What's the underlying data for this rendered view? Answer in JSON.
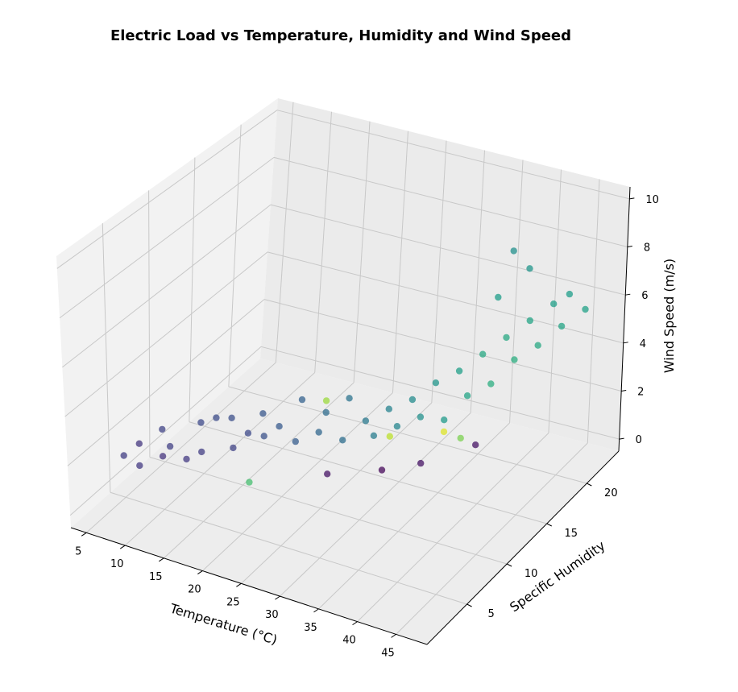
{
  "chart_data": {
    "type": "scatter",
    "projection": "3d",
    "title": "Electric Load vs Temperature, Humidity and Wind Speed",
    "xlabel": "Temperature (°C)",
    "ylabel": "Specific Humidity",
    "zlabel": "Wind Speed (m/s)",
    "xlim": [
      3,
      49
    ],
    "ylim": [
      0,
      24
    ],
    "zlim": [
      -0.5,
      10.5
    ],
    "xticks": [
      "5",
      "10",
      "15",
      "20",
      "25",
      "30",
      "35",
      "40",
      "45"
    ],
    "yticks": [
      "5",
      "10",
      "15",
      "20"
    ],
    "zticks": [
      "0",
      "2",
      "4",
      "6",
      "8",
      "10"
    ],
    "colormap": "viridis",
    "grid": true,
    "series": [
      {
        "points": [
          [
            5,
            5,
            1.2,
            0.18
          ],
          [
            6,
            6,
            1.5,
            0.16
          ],
          [
            7,
            5,
            1.0,
            0.17
          ],
          [
            8,
            7,
            2.0,
            0.2
          ],
          [
            9,
            6,
            1.3,
            0.15
          ],
          [
            10,
            6,
            1.8,
            0.19
          ],
          [
            11,
            7,
            1.1,
            0.17
          ],
          [
            12,
            8,
            2.4,
            0.22
          ],
          [
            13,
            7,
            1.6,
            0.18
          ],
          [
            14,
            8,
            2.8,
            0.23
          ],
          [
            15,
            9,
            1.4,
            0.2
          ],
          [
            16,
            8,
            3.0,
            0.24
          ],
          [
            17,
            9,
            2.2,
            0.22
          ],
          [
            18,
            10,
            1.9,
            0.25
          ],
          [
            19,
            9,
            3.2,
            0.27
          ],
          [
            20,
            10,
            2.5,
            0.28
          ],
          [
            21,
            11,
            1.7,
            0.29
          ],
          [
            22,
            11,
            3.5,
            0.31
          ],
          [
            23,
            12,
            2.0,
            0.33
          ],
          [
            24,
            12,
            2.9,
            0.35
          ],
          [
            25,
            13,
            1.6,
            0.36
          ],
          [
            26,
            13,
            3.4,
            0.38
          ],
          [
            27,
            14,
            2.3,
            0.4
          ],
          [
            28,
            14,
            1.8,
            0.42
          ],
          [
            29,
            15,
            2.7,
            0.44
          ],
          [
            30,
            15,
            2.1,
            0.46
          ],
          [
            31,
            16,
            3.0,
            0.48
          ],
          [
            32,
            16,
            2.4,
            0.5
          ],
          [
            33,
            17,
            3.6,
            0.52
          ],
          [
            34,
            17,
            2.2,
            0.54
          ],
          [
            35,
            18,
            4.0,
            0.56
          ],
          [
            36,
            18,
            3.1,
            0.58
          ],
          [
            37,
            19,
            4.6,
            0.6
          ],
          [
            38,
            19,
            3.5,
            0.62
          ],
          [
            39,
            20,
            5.2,
            0.6
          ],
          [
            40,
            20,
            4.4,
            0.62
          ],
          [
            41,
            21,
            5.8,
            0.58
          ],
          [
            42,
            21,
            4.9,
            0.6
          ],
          [
            43,
            22,
            6.4,
            0.56
          ],
          [
            44,
            22,
            5.6,
            0.58
          ],
          [
            45,
            22,
            7.0,
            0.55
          ],
          [
            46,
            23,
            6.2,
            0.57
          ],
          [
            40,
            18,
            7.5,
            0.55
          ],
          [
            42,
            20,
            8.3,
            0.52
          ],
          [
            41,
            19,
            9.2,
            0.5
          ],
          [
            34,
            14,
            1.3,
            0.05
          ],
          [
            30,
            13,
            0.9,
            0.02
          ],
          [
            36,
            15,
            2.5,
            0.95
          ],
          [
            25,
            11,
            0.8,
            0.05
          ],
          [
            18,
            8,
            0.6,
            0.7
          ],
          [
            28,
            16,
            1.2,
            0.9
          ],
          [
            38,
            17,
            1.6,
            0.05
          ],
          [
            22,
            14,
            2.6,
            0.85
          ],
          [
            33,
            20,
            0.5,
            0.8
          ]
        ]
      }
    ]
  }
}
